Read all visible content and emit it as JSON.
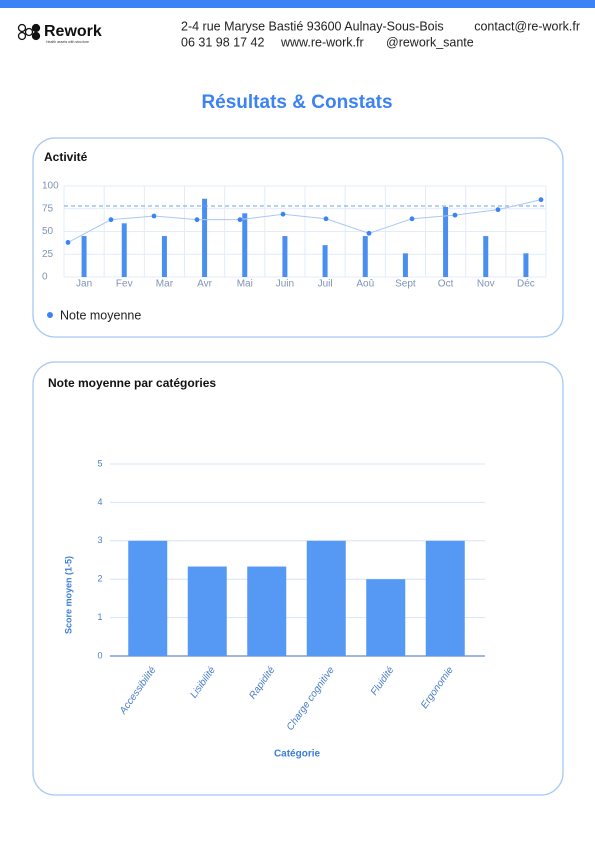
{
  "header": {
    "brand": "Rework",
    "tagline": "Health assets with structure",
    "address": "2-4 rue Maryse Bastié 93600 Aulnay-Sous-Bois",
    "email": "contact@re-work.fr",
    "phone": "06 31 98 17 42",
    "website": "www.re-work.fr",
    "social": "@rework_sante"
  },
  "title": "Résultats & Constats",
  "chart_data": [
    {
      "type": "combo",
      "title": "Activité",
      "categories": [
        "Jan",
        "Fev",
        "Mar",
        "Avr",
        "Mai",
        "Juin",
        "Juil",
        "Aoû",
        "Sept",
        "Oct",
        "Nov",
        "Déc"
      ],
      "bars": {
        "color": "#4a8ef0",
        "values": [
          45,
          59,
          45,
          86,
          70,
          45,
          35,
          45,
          26,
          77,
          45,
          26
        ]
      },
      "series": [
        {
          "name": "Note moyenne",
          "color": "#3b82f6",
          "values": [
            38,
            63,
            67,
            63,
            63,
            69,
            64,
            48,
            64,
            68,
            74,
            85
          ]
        }
      ],
      "reference_line": 78,
      "ylim": [
        0,
        100
      ],
      "yticks": [
        0,
        25,
        50,
        75,
        100
      ],
      "grid": true,
      "legend": "bottom-left"
    },
    {
      "type": "bar",
      "title": "Note moyenne par catégories",
      "categories": [
        "Accessibilité",
        "Lisibilité",
        "Rapidité",
        "Charge cognitive",
        "Fluidité",
        "Ergonomie"
      ],
      "values": [
        3,
        2.33,
        2.33,
        3,
        2,
        3
      ],
      "color": "#5599f5",
      "xlabel": "Catégorie",
      "ylabel": "Score moyen (1-5)",
      "ylim": [
        0,
        5
      ],
      "yticks": [
        0,
        1,
        2,
        3,
        4,
        5
      ],
      "grid": true
    }
  ]
}
